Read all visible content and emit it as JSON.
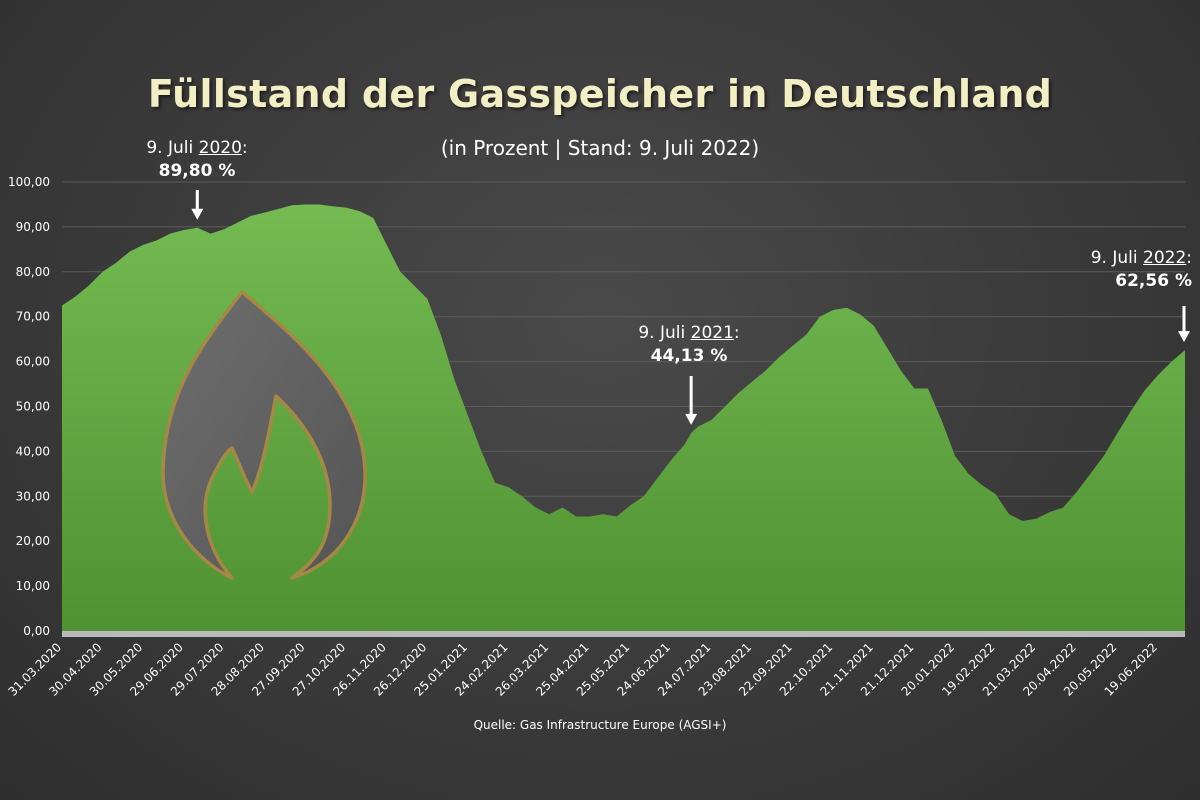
{
  "chart_data": {
    "type": "area",
    "title": "Füllstand der Gasspeicher in Deutschland",
    "subtitle": "(in Prozent | Stand: 9. Juli 2022)",
    "source": "Quelle: Gas Infrastructure Europe (AGSI+)",
    "ylim": [
      0,
      100
    ],
    "y_ticks": [
      "0,00",
      "10,00",
      "20,00",
      "30,00",
      "40,00",
      "50,00",
      "60,00",
      "70,00",
      "80,00",
      "90,00",
      "100,00"
    ],
    "x_ticks": [
      "31.03.2020",
      "30.04.2020",
      "30.05.2020",
      "29.06.2020",
      "29.07.2020",
      "28.08.2020",
      "27.09.2020",
      "27.10.2020",
      "26.11.2020",
      "26.12.2020",
      "25.01.2021",
      "24.02.2021",
      "26.03.2021",
      "25.04.2021",
      "25.05.2021",
      "24.06.2021",
      "24.07.2021",
      "23.08.2021",
      "22.09.2021",
      "22.10.2021",
      "21.11.2021",
      "21.12.2021",
      "20.01.2022",
      "19.02.2022",
      "21.03.2022",
      "20.04.2022",
      "20.05.2022",
      "19.06.2022"
    ],
    "x_range": [
      "31.03.2020",
      "09.07.2022"
    ],
    "grid": true,
    "area_color": "#6ab04c",
    "series": [
      {
        "points": [
          [
            "31.03.2020",
            72.5
          ],
          [
            "10.04.2020",
            74.5
          ],
          [
            "20.04.2020",
            77
          ],
          [
            "30.04.2020",
            80
          ],
          [
            "10.05.2020",
            82
          ],
          [
            "20.05.2020",
            84.5
          ],
          [
            "30.05.2020",
            86
          ],
          [
            "09.06.2020",
            87
          ],
          [
            "19.06.2020",
            88.5
          ],
          [
            "29.06.2020",
            89.3
          ],
          [
            "09.07.2020",
            89.8
          ],
          [
            "19.07.2020",
            88.5
          ],
          [
            "29.07.2020",
            89.5
          ],
          [
            "08.08.2020",
            91
          ],
          [
            "18.08.2020",
            92.5
          ],
          [
            "28.08.2020",
            93.2
          ],
          [
            "07.09.2020",
            94
          ],
          [
            "17.09.2020",
            94.8
          ],
          [
            "27.09.2020",
            95
          ],
          [
            "07.10.2020",
            95
          ],
          [
            "17.10.2020",
            94.6
          ],
          [
            "27.10.2020",
            94.3
          ],
          [
            "06.11.2020",
            93.5
          ],
          [
            "16.11.2020",
            92
          ],
          [
            "26.11.2020",
            86
          ],
          [
            "06.12.2020",
            80
          ],
          [
            "16.12.2020",
            77
          ],
          [
            "26.12.2020",
            74
          ],
          [
            "05.01.2021",
            66
          ],
          [
            "15.01.2021",
            56
          ],
          [
            "25.01.2021",
            48
          ],
          [
            "04.02.2021",
            40
          ],
          [
            "14.02.2021",
            33
          ],
          [
            "24.02.2021",
            32
          ],
          [
            "06.03.2021",
            30
          ],
          [
            "16.03.2021",
            27.5
          ],
          [
            "26.03.2021",
            26
          ],
          [
            "05.04.2021",
            27.5
          ],
          [
            "15.04.2021",
            25.5
          ],
          [
            "25.04.2021",
            25.5
          ],
          [
            "05.05.2021",
            26
          ],
          [
            "15.05.2021",
            25.5
          ],
          [
            "25.05.2021",
            28
          ],
          [
            "04.06.2021",
            30
          ],
          [
            "14.06.2021",
            34
          ],
          [
            "24.06.2021",
            38
          ],
          [
            "04.07.2021",
            41.5
          ],
          [
            "09.07.2021",
            44.13
          ],
          [
            "14.07.2021",
            45.5
          ],
          [
            "24.07.2021",
            47
          ],
          [
            "03.08.2021",
            50
          ],
          [
            "13.08.2021",
            53
          ],
          [
            "23.08.2021",
            55.5
          ],
          [
            "02.09.2021",
            58
          ],
          [
            "12.09.2021",
            61
          ],
          [
            "22.09.2021",
            63.5
          ],
          [
            "02.10.2021",
            66
          ],
          [
            "12.10.2021",
            70
          ],
          [
            "22.10.2021",
            71.5
          ],
          [
            "01.11.2021",
            72
          ],
          [
            "11.11.2021",
            70.5
          ],
          [
            "21.11.2021",
            68
          ],
          [
            "01.12.2021",
            63
          ],
          [
            "11.12.2021",
            58
          ],
          [
            "21.12.2021",
            54
          ],
          [
            "31.12.2021",
            54
          ],
          [
            "10.01.2022",
            47
          ],
          [
            "20.01.2022",
            39
          ],
          [
            "30.01.2022",
            35
          ],
          [
            "09.02.2022",
            32.5
          ],
          [
            "19.02.2022",
            30.5
          ],
          [
            "01.03.2022",
            26
          ],
          [
            "11.03.2022",
            24.5
          ],
          [
            "21.03.2022",
            25
          ],
          [
            "31.03.2022",
            26.5
          ],
          [
            "10.04.2022",
            27.5
          ],
          [
            "20.04.2022",
            31
          ],
          [
            "30.04.2022",
            35
          ],
          [
            "10.05.2022",
            39
          ],
          [
            "20.05.2022",
            44
          ],
          [
            "30.05.2022",
            49
          ],
          [
            "09.06.2022",
            53.5
          ],
          [
            "19.06.2022",
            57
          ],
          [
            "29.06.2022",
            60
          ],
          [
            "09.07.2022",
            62.56
          ]
        ]
      }
    ],
    "annotations": [
      {
        "prefix": "9. Juli ",
        "year": "2020",
        "suffix": ":",
        "value": "89,80 %",
        "date": "09.07.2020",
        "y": 89.8
      },
      {
        "prefix": "9. Juli ",
        "year": "2021",
        "suffix": ":",
        "value": "44,13 %",
        "date": "09.07.2021",
        "y": 44.13
      },
      {
        "prefix": "9. Juli ",
        "year": "2022",
        "suffix": ":",
        "value": "62,56 %",
        "date": "09.07.2022",
        "y": 62.56
      }
    ]
  },
  "icon": "gas-flame-icon"
}
